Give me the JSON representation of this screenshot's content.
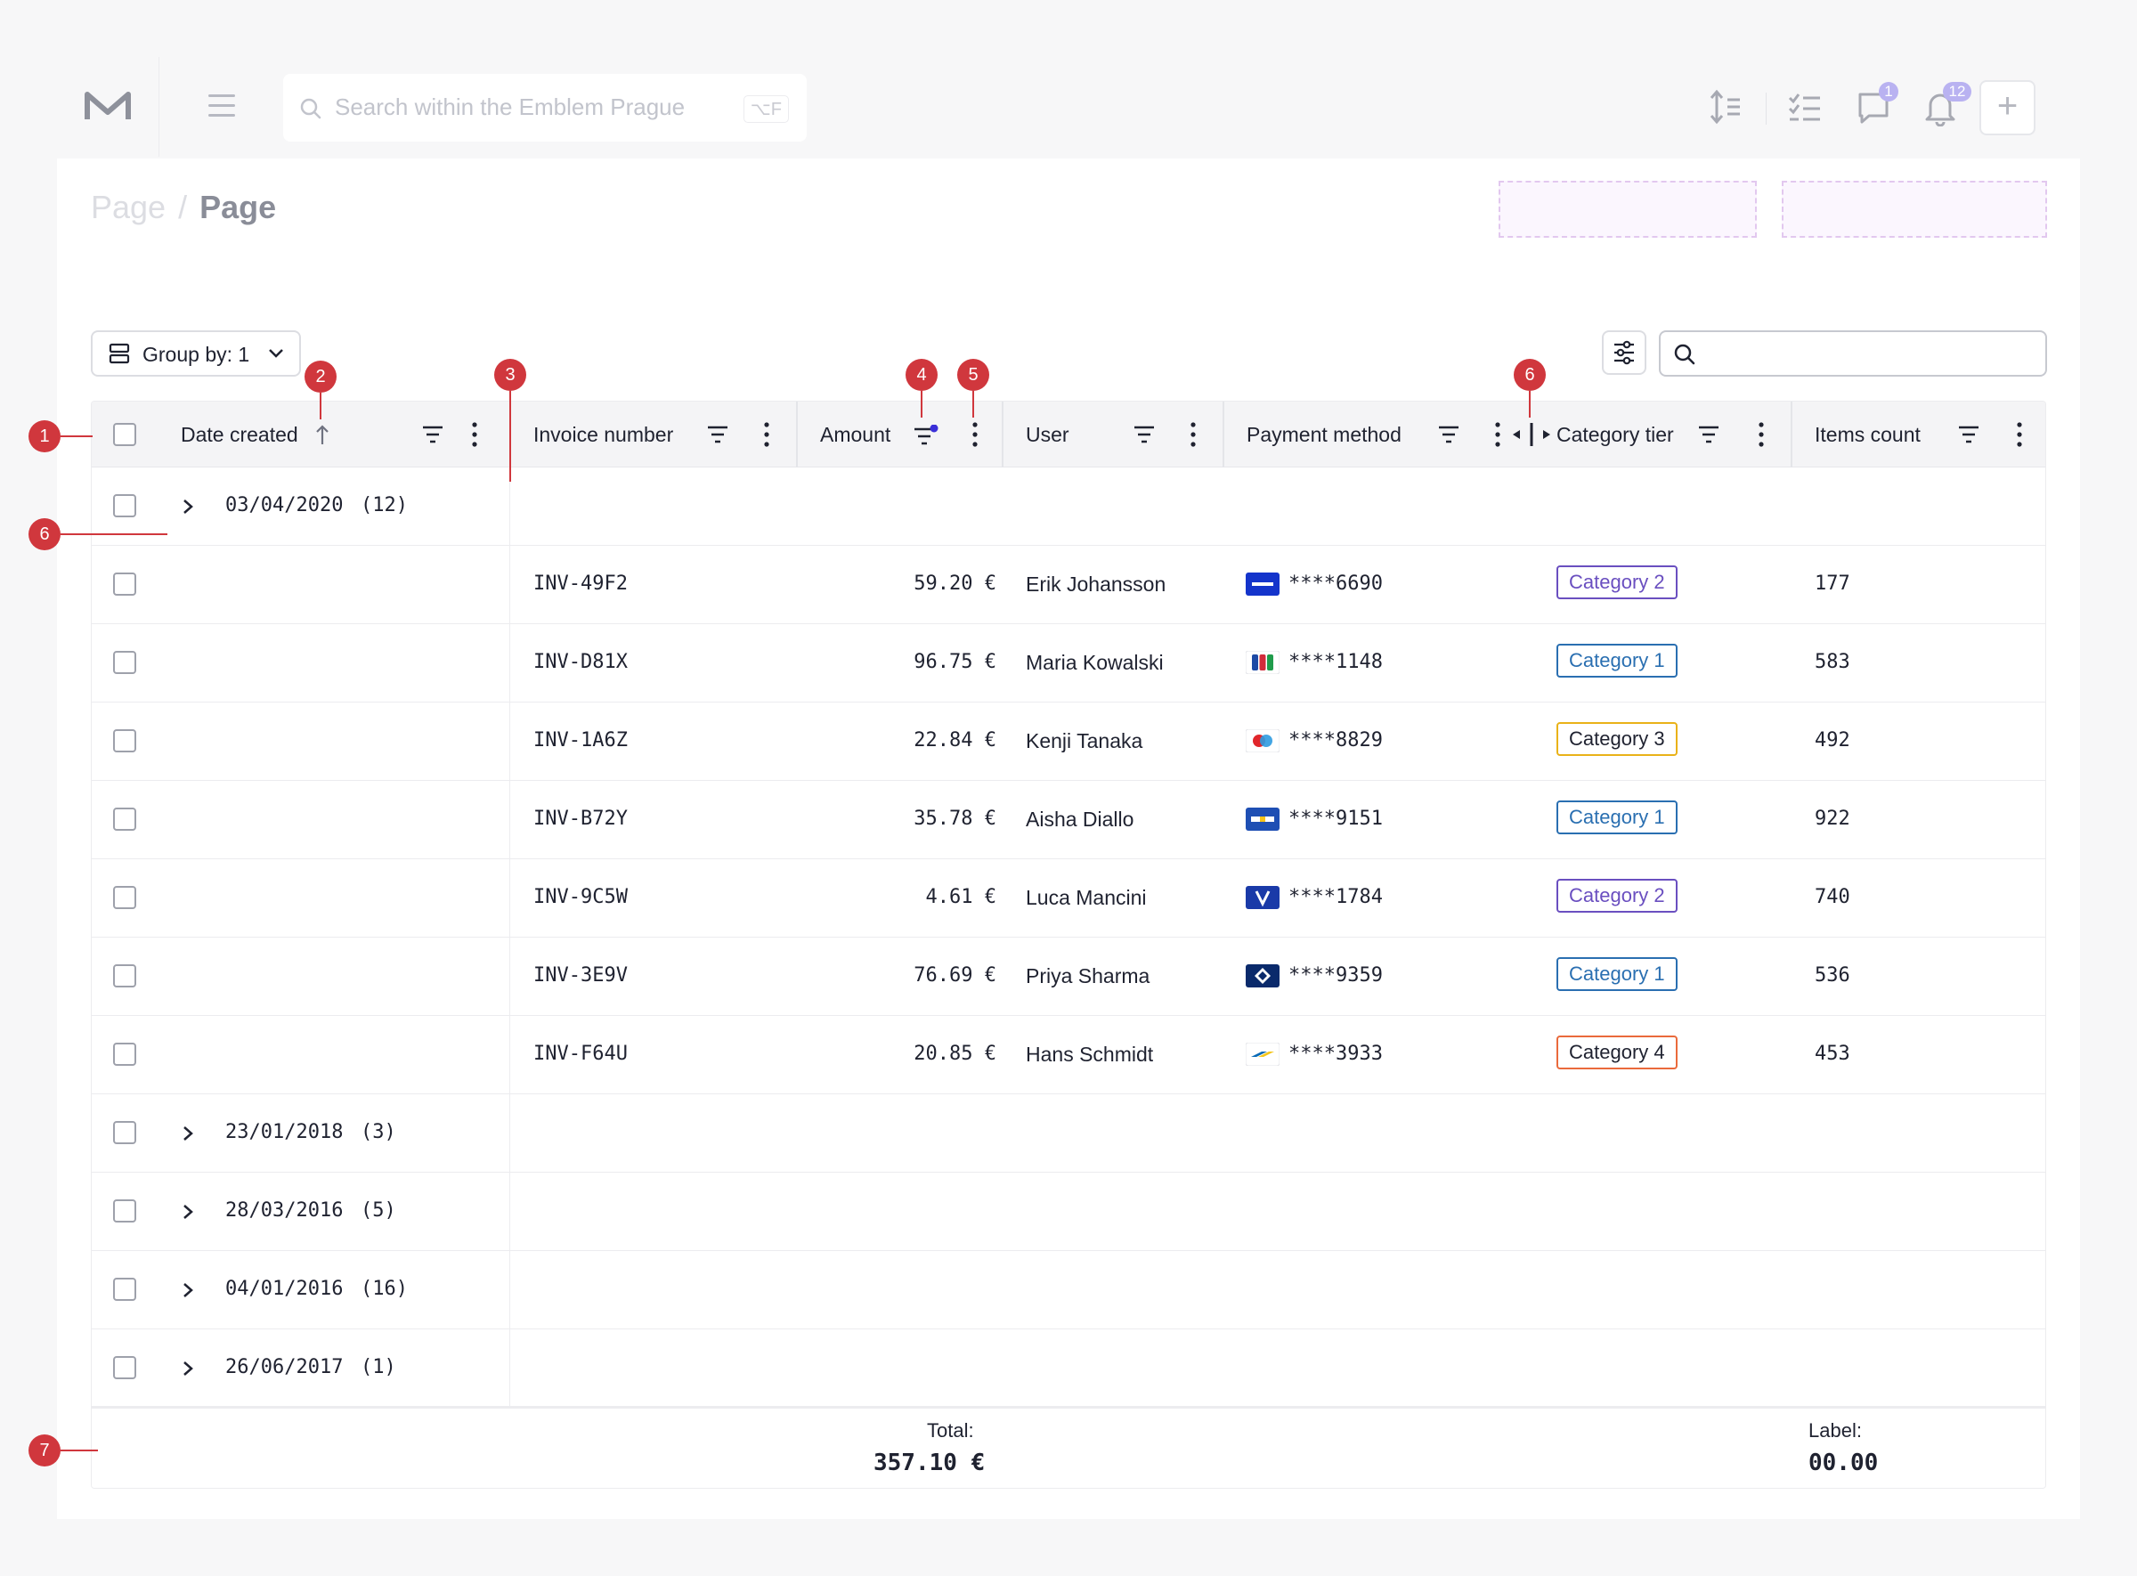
{
  "topbar": {
    "logo": "emblem-m-logo",
    "search_placeholder": "Search within the Emblem Prague",
    "search_shortcut": "⌥F",
    "chat_badge": "1",
    "notification_badge": "12"
  },
  "breadcrumb": {
    "previous": "Page",
    "separator": "/",
    "current": "Page"
  },
  "toolbar": {
    "group_by_label": "Group by: 1",
    "table_search_value": ""
  },
  "table": {
    "columns": [
      {
        "label": "Date created"
      },
      {
        "label": "Invoice number"
      },
      {
        "label": "Amount"
      },
      {
        "label": "User"
      },
      {
        "label": "Payment method"
      },
      {
        "label": "Category tier"
      },
      {
        "label": "Items count"
      }
    ],
    "group_open": {
      "date": "03/04/2020",
      "count": "(12)"
    },
    "rows": [
      {
        "invoice": "INV-49F2",
        "amount": "59.20 €",
        "user": "Erik Johansson",
        "card_type": "visa",
        "card_number": "****6690",
        "category": "Category 2",
        "items": "177"
      },
      {
        "invoice": "INV-D81X",
        "amount": "96.75 €",
        "user": "Maria Kowalski",
        "card_type": "jcb",
        "card_number": "****1148",
        "category": "Category 1",
        "items": "583"
      },
      {
        "invoice": "INV-1A6Z",
        "amount": "22.84 €",
        "user": "Kenji Tanaka",
        "card_type": "maestro",
        "card_number": "****8829",
        "category": "Category 3",
        "items": "492"
      },
      {
        "invoice": "INV-B72Y",
        "amount": "35.78 €",
        "user": "Aisha Diallo",
        "card_type": "sepa",
        "card_number": "****9151",
        "category": "Category 1",
        "items": "922"
      },
      {
        "invoice": "INV-9C5W",
        "amount": "4.61 €",
        "user": "Luca Mancini",
        "card_type": "vpay",
        "card_number": "****1784",
        "category": "Category 2",
        "items": "740"
      },
      {
        "invoice": "INV-3E9V",
        "amount": "76.69 €",
        "user": "Priya Sharma",
        "card_type": "diners",
        "card_number": "****9359",
        "category": "Category 1",
        "items": "536"
      },
      {
        "invoice": "INV-F64U",
        "amount": "20.85 €",
        "user": "Hans Schmidt",
        "card_type": "bancontact",
        "card_number": "****3933",
        "category": "Category 4",
        "items": "453"
      }
    ],
    "groups_collapsed": [
      {
        "date": "23/01/2018",
        "count": "(3)"
      },
      {
        "date": "28/03/2016",
        "count": "(5)"
      },
      {
        "date": "04/01/2016",
        "count": "(16)"
      },
      {
        "date": "26/06/2017",
        "count": "(1)"
      }
    ],
    "footer": {
      "total_label": "Total:",
      "total_value": "357.10 €",
      "label_label": "Label:",
      "label_value": "00.00"
    }
  },
  "category_colors": {
    "Category 1": "#2a6fb1",
    "Category 2": "#6a4fc0",
    "Category 3": "#e9b218",
    "Category 4": "#ea6a3c"
  },
  "annotations": [
    "1",
    "2",
    "3",
    "4",
    "5",
    "6",
    "6",
    "7"
  ]
}
